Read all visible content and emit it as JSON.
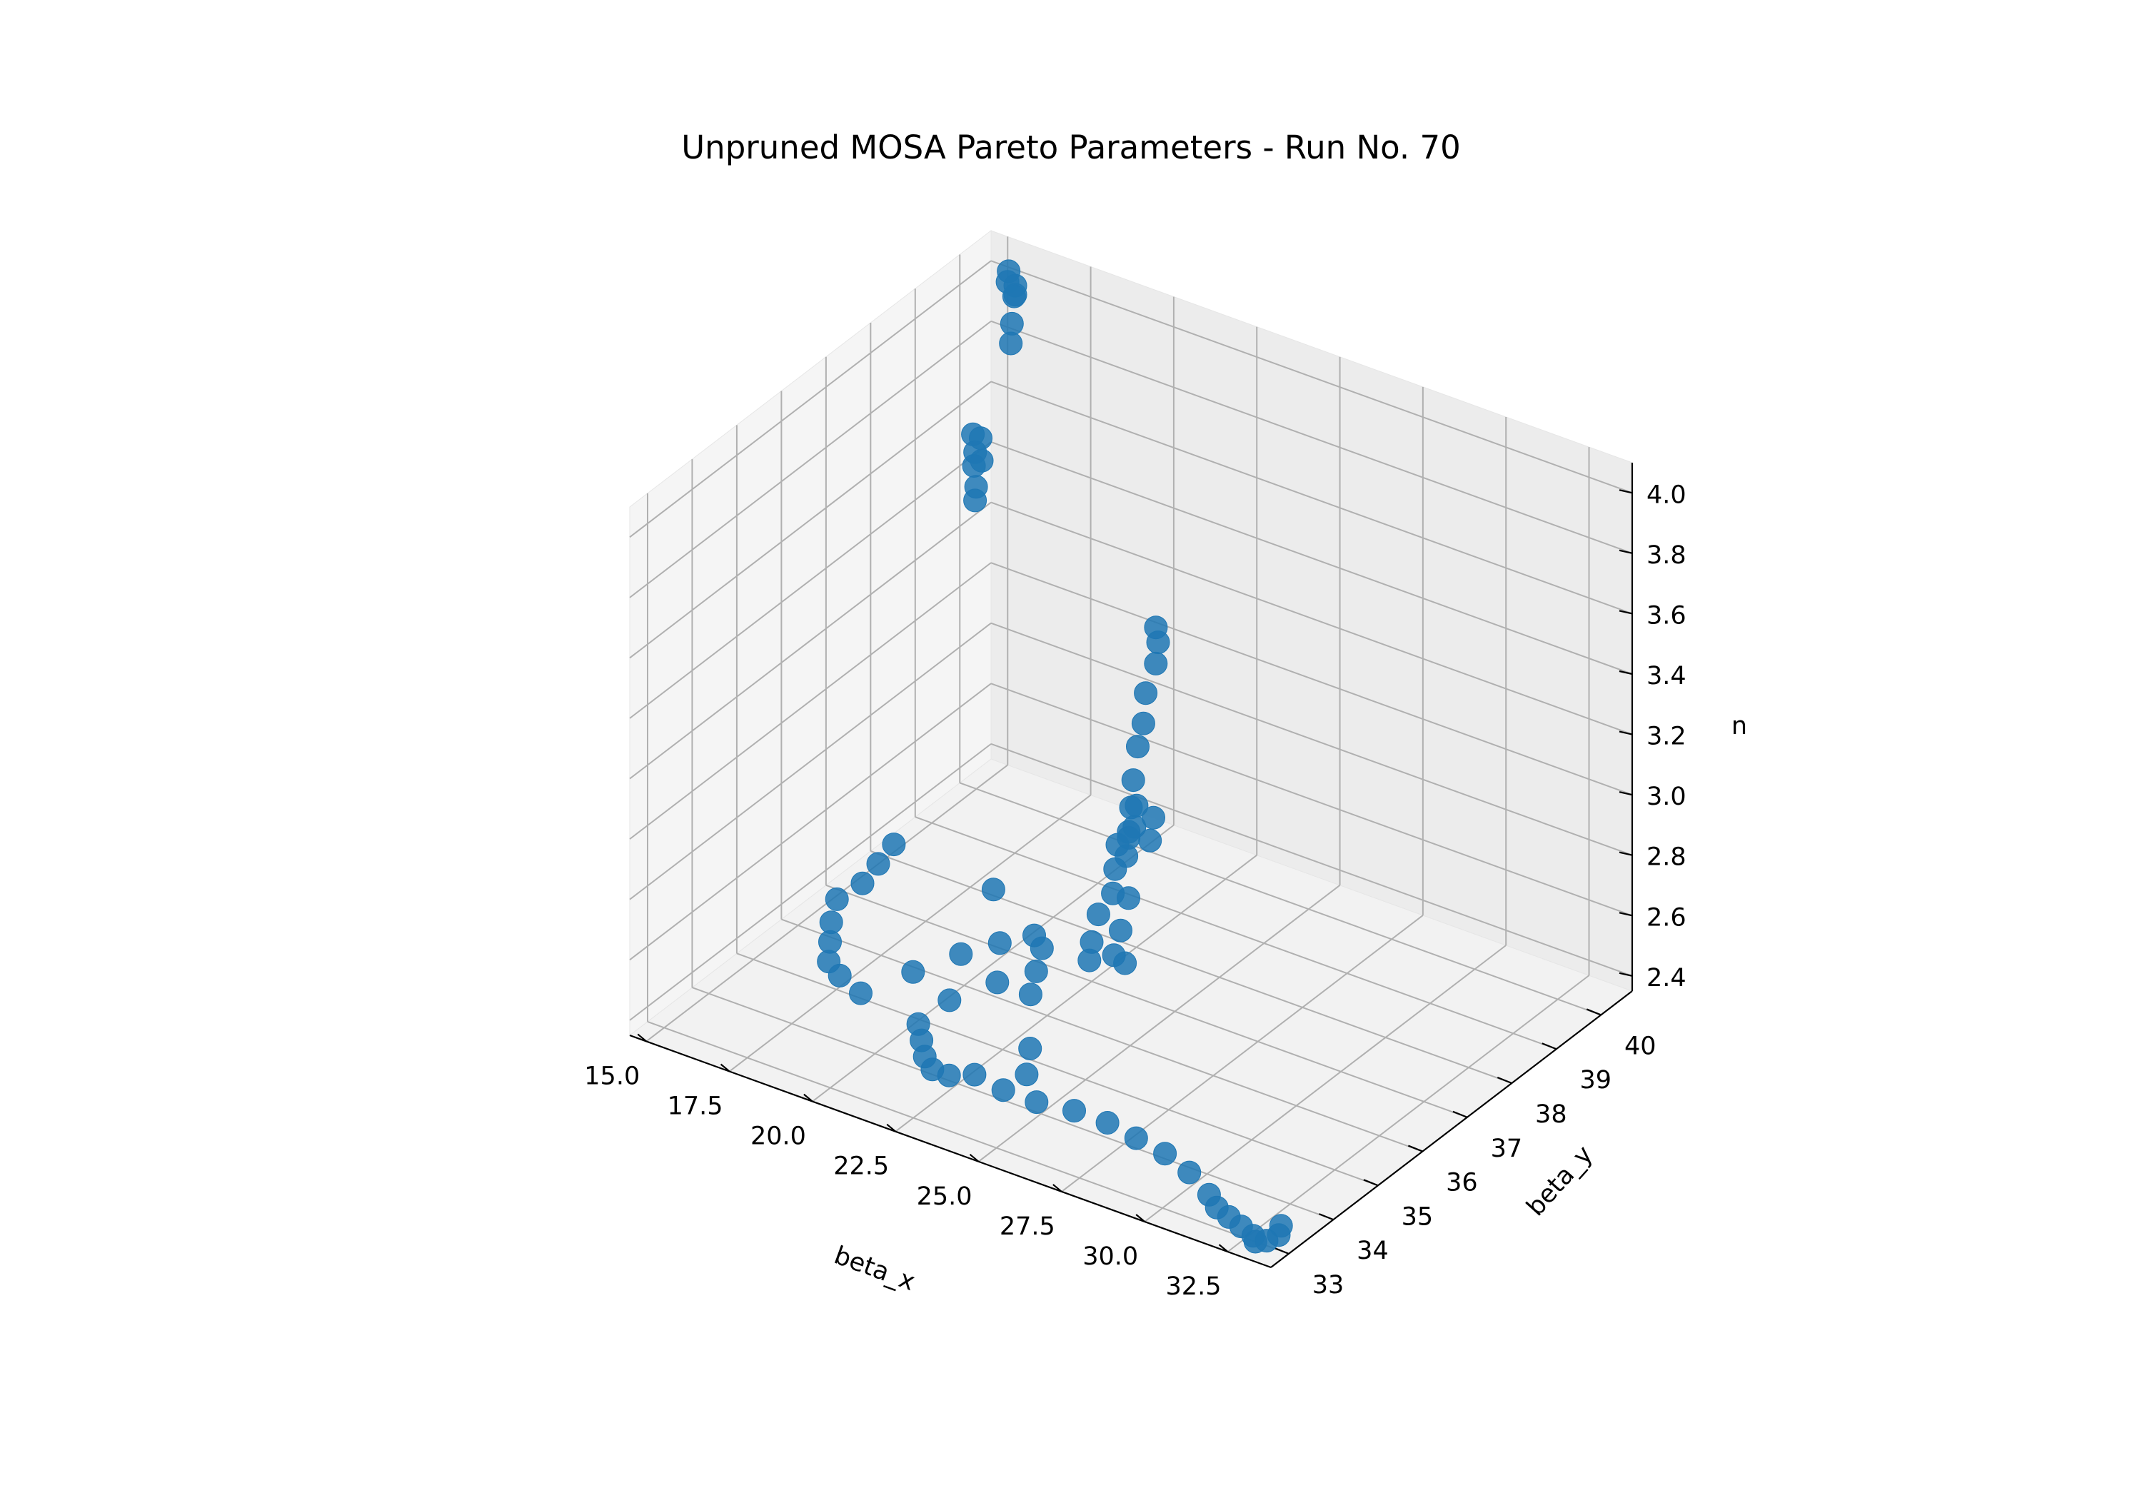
{
  "chart_data": {
    "type": "scatter",
    "projection": "3d",
    "title": "Unpruned MOSA Pareto Parameters - Run No. 70",
    "xlabel": "beta_x",
    "ylabel": "beta_y",
    "zlabel": "n",
    "xlim": [
      14.5,
      33.8
    ],
    "ylim": [
      32.6,
      40.7
    ],
    "zlim": [
      2.35,
      4.1
    ],
    "xticks": [
      15.0,
      17.5,
      20.0,
      22.5,
      25.0,
      27.5,
      30.0,
      32.5
    ],
    "xtick_labels": [
      "15.0",
      "17.5",
      "20.0",
      "22.5",
      "25.0",
      "27.5",
      "30.0",
      "32.5"
    ],
    "yticks": [
      33,
      34,
      35,
      36,
      37,
      38,
      39,
      40
    ],
    "ytick_labels": [
      "33",
      "34",
      "35",
      "36",
      "37",
      "38",
      "39",
      "40"
    ],
    "zticks": [
      2.4,
      2.6,
      2.8,
      3.0,
      3.2,
      3.4,
      3.6,
      3.8,
      4.0
    ],
    "ztick_labels": [
      "2.4",
      "2.6",
      "2.8",
      "3.0",
      "3.2",
      "3.4",
      "3.6",
      "3.8",
      "4.0"
    ],
    "grid": true,
    "color": "#1f77b4",
    "series": [
      {
        "points": [
          [
            15.3,
            40.5,
            4.02
          ],
          [
            15.4,
            40.4,
            4.0
          ],
          [
            15.5,
            40.5,
            3.98
          ],
          [
            15.6,
            40.4,
            3.96
          ],
          [
            15.8,
            40.2,
            3.9
          ],
          [
            15.9,
            40.1,
            3.85
          ],
          [
            15.5,
            40.5,
            3.95
          ],
          [
            15.7,
            39.4,
            3.62
          ],
          [
            15.9,
            39.3,
            3.58
          ],
          [
            16.0,
            39.2,
            3.55
          ],
          [
            16.2,
            39.1,
            3.5
          ],
          [
            15.8,
            39.5,
            3.6
          ],
          [
            16.1,
            39.3,
            3.56
          ],
          [
            16.3,
            39.0,
            3.47
          ],
          [
            20.0,
            40.3,
            3.05
          ],
          [
            20.2,
            40.2,
            3.02
          ],
          [
            20.4,
            40.0,
            2.98
          ],
          [
            20.9,
            39.4,
            2.97
          ],
          [
            21.1,
            39.2,
            2.9
          ],
          [
            21.2,
            39.0,
            2.85
          ],
          [
            21.6,
            38.6,
            2.8
          ],
          [
            21.8,
            38.4,
            2.74
          ],
          [
            22.0,
            38.2,
            2.69
          ],
          [
            22.2,
            38.0,
            2.64
          ],
          [
            21.3,
            38.9,
            2.67
          ],
          [
            21.5,
            38.7,
            2.63
          ],
          [
            22.6,
            37.5,
            2.75
          ],
          [
            22.8,
            37.3,
            2.7
          ],
          [
            23.0,
            37.1,
            2.65
          ],
          [
            22.4,
            37.9,
            2.72
          ],
          [
            22.7,
            37.0,
            2.58
          ],
          [
            22.9,
            36.7,
            2.53
          ],
          [
            23.1,
            36.5,
            2.5
          ],
          [
            22.8,
            37.6,
            2.57
          ],
          [
            23.1,
            37.2,
            2.52
          ],
          [
            23.3,
            36.9,
            2.48
          ],
          [
            21.0,
            39.5,
            2.55
          ],
          [
            21.3,
            39.2,
            2.52
          ],
          [
            23.5,
            37.0,
            2.45
          ],
          [
            24.0,
            34.5,
            2.47
          ],
          [
            24.3,
            34.2,
            2.43
          ],
          [
            18.6,
            37.7,
            2.42
          ],
          [
            15.2,
            38.0,
            2.4
          ],
          [
            15.4,
            37.5,
            2.4
          ],
          [
            15.6,
            37.0,
            2.4
          ],
          [
            15.5,
            36.5,
            2.4
          ],
          [
            16.0,
            36.0,
            2.4
          ],
          [
            16.5,
            35.6,
            2.4
          ],
          [
            17.0,
            35.2,
            2.4
          ],
          [
            17.6,
            35.0,
            2.4
          ],
          [
            18.5,
            34.8,
            2.4
          ],
          [
            19.0,
            35.6,
            2.4
          ],
          [
            19.5,
            36.3,
            2.4
          ],
          [
            20.0,
            36.8,
            2.4
          ],
          [
            20.5,
            37.2,
            2.4
          ],
          [
            21.0,
            37.0,
            2.4
          ],
          [
            21.5,
            36.5,
            2.4
          ],
          [
            22.0,
            36.0,
            2.4
          ],
          [
            21.0,
            36.0,
            2.4
          ],
          [
            20.5,
            35.3,
            2.4
          ],
          [
            20.5,
            34.6,
            2.4
          ],
          [
            21.0,
            34.3,
            2.4
          ],
          [
            21.5,
            34.0,
            2.4
          ],
          [
            22.0,
            33.8,
            2.4
          ],
          [
            22.5,
            33.8,
            2.4
          ],
          [
            23.0,
            34.0,
            2.4
          ],
          [
            24.0,
            33.9,
            2.4
          ],
          [
            25.0,
            33.9,
            2.4
          ],
          [
            26.0,
            34.0,
            2.4
          ],
          [
            27.0,
            34.0,
            2.4
          ],
          [
            28.0,
            33.9,
            2.4
          ],
          [
            29.0,
            33.8,
            2.4
          ],
          [
            30.0,
            33.6,
            2.4
          ],
          [
            31.0,
            33.3,
            2.4
          ],
          [
            31.5,
            33.1,
            2.4
          ],
          [
            32.0,
            33.0,
            2.4
          ],
          [
            32.5,
            32.9,
            2.4
          ],
          [
            33.0,
            32.8,
            2.4
          ],
          [
            33.2,
            32.7,
            2.4
          ],
          [
            33.4,
            32.8,
            2.4
          ],
          [
            33.5,
            33.0,
            2.4
          ],
          [
            33.3,
            33.2,
            2.4
          ]
        ]
      }
    ]
  }
}
